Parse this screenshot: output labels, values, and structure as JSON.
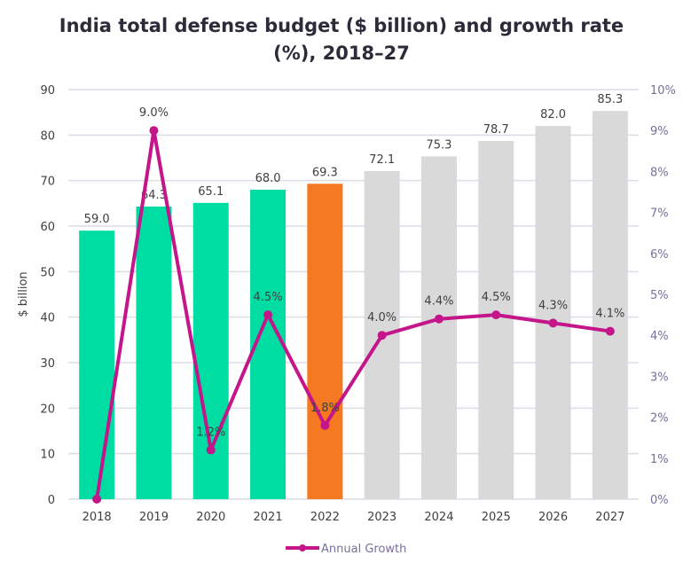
{
  "chart_data": {
    "type": "bar",
    "title_line1": "India total defense budget ($ billion) and growth rate",
    "title_line2": "(%), 2018–27",
    "categories": [
      "2018",
      "2019",
      "2020",
      "2021",
      "2022",
      "2023",
      "2024",
      "2025",
      "2026",
      "2027"
    ],
    "ylabel": "$ billion",
    "ylim": [
      0,
      90
    ],
    "yticks": [
      "0",
      "10",
      "20",
      "30",
      "40",
      "50",
      "60",
      "70",
      "80",
      "90"
    ],
    "y2lim": [
      0,
      10
    ],
    "y2ticks": [
      "0%",
      "1%",
      "2%",
      "3%",
      "4%",
      "5%",
      "6%",
      "7%",
      "8%",
      "9%",
      "10%"
    ],
    "grid": true,
    "legend_placement": "bottom",
    "series": [
      {
        "type": "bar",
        "values": [
          59.0,
          64.3,
          65.1,
          68.0,
          69.3,
          72.1,
          75.3,
          78.7,
          82.0,
          85.3
        ],
        "labels": [
          "59.0",
          "64.3",
          "65.1",
          "68.0",
          "69.3",
          "72.1",
          "75.3",
          "78.7",
          "82.0",
          "85.3"
        ],
        "colors": [
          "#00dda3",
          "#00dda3",
          "#00dda3",
          "#00dda3",
          "#f47920",
          "#d9d9d9",
          "#d9d9d9",
          "#d9d9d9",
          "#d9d9d9",
          "#d9d9d9"
        ]
      },
      {
        "type": "line",
        "name": "Annual Growth",
        "axis": "right",
        "color": "#c4168a",
        "values": [
          0,
          9.0,
          1.2,
          4.5,
          1.8,
          4.0,
          4.4,
          4.5,
          4.3,
          4.1
        ],
        "labels": [
          "",
          "9.0%",
          "1.2%",
          "4.5%",
          "1.8%",
          "4.0%",
          "4.4%",
          "4.5%",
          "4.3%",
          "4.1%"
        ]
      }
    ]
  }
}
